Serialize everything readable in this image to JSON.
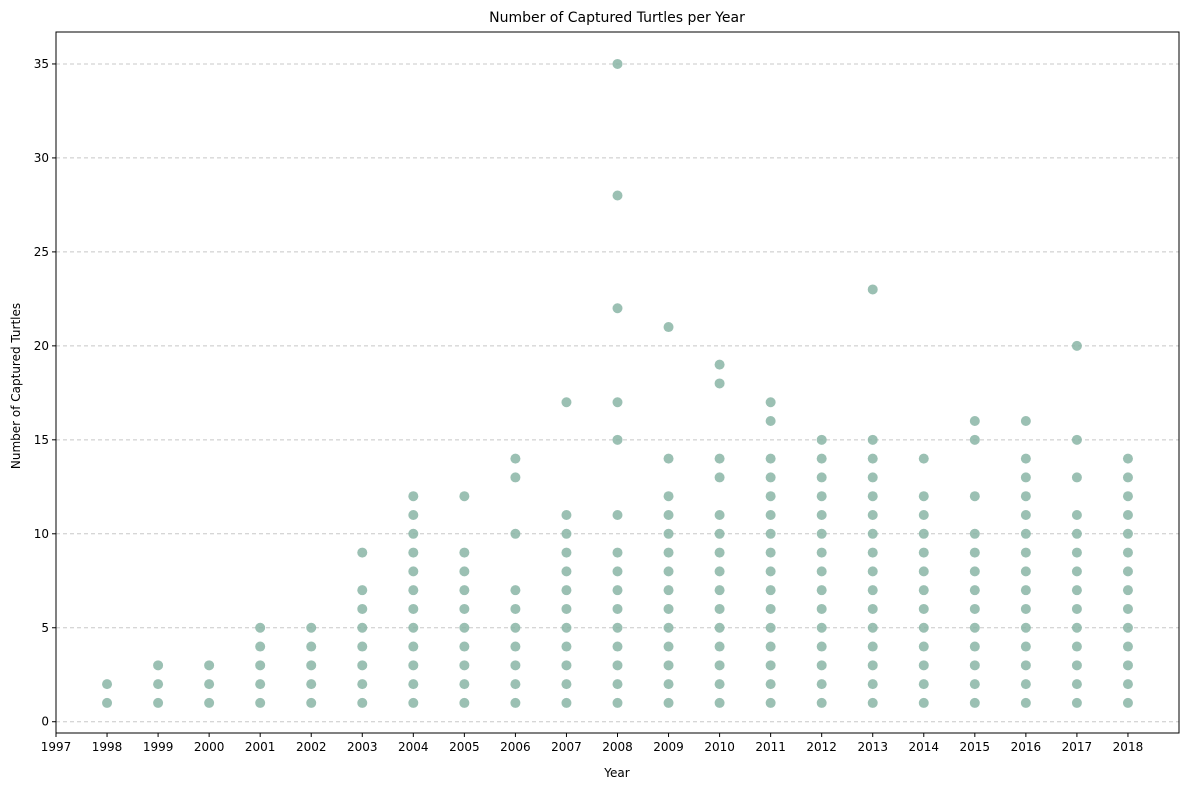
{
  "chart_data": {
    "type": "scatter",
    "title": "Number of Captured Turtles per Year",
    "xlabel": "Year",
    "ylabel": "Number of Captured Turtles",
    "xlim": [
      1997,
      2019
    ],
    "ylim": [
      -0.6,
      36.7
    ],
    "xticks": [
      1997,
      1998,
      1999,
      2000,
      2001,
      2002,
      2003,
      2004,
      2005,
      2006,
      2007,
      2008,
      2009,
      2010,
      2011,
      2012,
      2013,
      2014,
      2015,
      2016,
      2017,
      2018
    ],
    "yticks": [
      0,
      5,
      10,
      15,
      20,
      25,
      30,
      35
    ],
    "grid": "y-dashed",
    "marker_color": "#8ab5a6",
    "points": [
      [
        1998,
        1
      ],
      [
        1998,
        2
      ],
      [
        1999,
        1
      ],
      [
        1999,
        2
      ],
      [
        1999,
        3
      ],
      [
        2000,
        1
      ],
      [
        2000,
        2
      ],
      [
        2000,
        3
      ],
      [
        2001,
        1
      ],
      [
        2001,
        2
      ],
      [
        2001,
        3
      ],
      [
        2001,
        4
      ],
      [
        2001,
        5
      ],
      [
        2002,
        1
      ],
      [
        2002,
        2
      ],
      [
        2002,
        3
      ],
      [
        2002,
        4
      ],
      [
        2002,
        5
      ],
      [
        2003,
        1
      ],
      [
        2003,
        2
      ],
      [
        2003,
        3
      ],
      [
        2003,
        4
      ],
      [
        2003,
        5
      ],
      [
        2003,
        6
      ],
      [
        2003,
        7
      ],
      [
        2003,
        9
      ],
      [
        2004,
        1
      ],
      [
        2004,
        2
      ],
      [
        2004,
        3
      ],
      [
        2004,
        4
      ],
      [
        2004,
        5
      ],
      [
        2004,
        6
      ],
      [
        2004,
        7
      ],
      [
        2004,
        8
      ],
      [
        2004,
        9
      ],
      [
        2004,
        10
      ],
      [
        2004,
        11
      ],
      [
        2004,
        12
      ],
      [
        2005,
        1
      ],
      [
        2005,
        2
      ],
      [
        2005,
        3
      ],
      [
        2005,
        4
      ],
      [
        2005,
        5
      ],
      [
        2005,
        6
      ],
      [
        2005,
        7
      ],
      [
        2005,
        8
      ],
      [
        2005,
        9
      ],
      [
        2005,
        12
      ],
      [
        2006,
        1
      ],
      [
        2006,
        2
      ],
      [
        2006,
        3
      ],
      [
        2006,
        4
      ],
      [
        2006,
        5
      ],
      [
        2006,
        6
      ],
      [
        2006,
        7
      ],
      [
        2006,
        10
      ],
      [
        2006,
        13
      ],
      [
        2006,
        14
      ],
      [
        2007,
        1
      ],
      [
        2007,
        2
      ],
      [
        2007,
        3
      ],
      [
        2007,
        4
      ],
      [
        2007,
        5
      ],
      [
        2007,
        6
      ],
      [
        2007,
        7
      ],
      [
        2007,
        8
      ],
      [
        2007,
        9
      ],
      [
        2007,
        10
      ],
      [
        2007,
        11
      ],
      [
        2007,
        17
      ],
      [
        2008,
        1
      ],
      [
        2008,
        2
      ],
      [
        2008,
        3
      ],
      [
        2008,
        4
      ],
      [
        2008,
        5
      ],
      [
        2008,
        6
      ],
      [
        2008,
        7
      ],
      [
        2008,
        8
      ],
      [
        2008,
        9
      ],
      [
        2008,
        11
      ],
      [
        2008,
        15
      ],
      [
        2008,
        17
      ],
      [
        2008,
        22
      ],
      [
        2008,
        28
      ],
      [
        2008,
        35
      ],
      [
        2009,
        1
      ],
      [
        2009,
        2
      ],
      [
        2009,
        3
      ],
      [
        2009,
        4
      ],
      [
        2009,
        5
      ],
      [
        2009,
        6
      ],
      [
        2009,
        7
      ],
      [
        2009,
        8
      ],
      [
        2009,
        9
      ],
      [
        2009,
        10
      ],
      [
        2009,
        11
      ],
      [
        2009,
        12
      ],
      [
        2009,
        14
      ],
      [
        2009,
        21
      ],
      [
        2010,
        1
      ],
      [
        2010,
        2
      ],
      [
        2010,
        3
      ],
      [
        2010,
        4
      ],
      [
        2010,
        5
      ],
      [
        2010,
        6
      ],
      [
        2010,
        7
      ],
      [
        2010,
        8
      ],
      [
        2010,
        9
      ],
      [
        2010,
        10
      ],
      [
        2010,
        11
      ],
      [
        2010,
        13
      ],
      [
        2010,
        14
      ],
      [
        2010,
        18
      ],
      [
        2010,
        19
      ],
      [
        2011,
        1
      ],
      [
        2011,
        2
      ],
      [
        2011,
        3
      ],
      [
        2011,
        4
      ],
      [
        2011,
        5
      ],
      [
        2011,
        6
      ],
      [
        2011,
        7
      ],
      [
        2011,
        8
      ],
      [
        2011,
        9
      ],
      [
        2011,
        10
      ],
      [
        2011,
        11
      ],
      [
        2011,
        12
      ],
      [
        2011,
        13
      ],
      [
        2011,
        14
      ],
      [
        2011,
        16
      ],
      [
        2011,
        17
      ],
      [
        2012,
        1
      ],
      [
        2012,
        2
      ],
      [
        2012,
        3
      ],
      [
        2012,
        4
      ],
      [
        2012,
        5
      ],
      [
        2012,
        6
      ],
      [
        2012,
        7
      ],
      [
        2012,
        8
      ],
      [
        2012,
        9
      ],
      [
        2012,
        10
      ],
      [
        2012,
        11
      ],
      [
        2012,
        12
      ],
      [
        2012,
        13
      ],
      [
        2012,
        14
      ],
      [
        2012,
        15
      ],
      [
        2013,
        1
      ],
      [
        2013,
        2
      ],
      [
        2013,
        3
      ],
      [
        2013,
        4
      ],
      [
        2013,
        5
      ],
      [
        2013,
        6
      ],
      [
        2013,
        7
      ],
      [
        2013,
        8
      ],
      [
        2013,
        9
      ],
      [
        2013,
        10
      ],
      [
        2013,
        11
      ],
      [
        2013,
        12
      ],
      [
        2013,
        13
      ],
      [
        2013,
        14
      ],
      [
        2013,
        15
      ],
      [
        2013,
        23
      ],
      [
        2014,
        1
      ],
      [
        2014,
        2
      ],
      [
        2014,
        3
      ],
      [
        2014,
        4
      ],
      [
        2014,
        5
      ],
      [
        2014,
        6
      ],
      [
        2014,
        7
      ],
      [
        2014,
        8
      ],
      [
        2014,
        9
      ],
      [
        2014,
        10
      ],
      [
        2014,
        11
      ],
      [
        2014,
        12
      ],
      [
        2014,
        14
      ],
      [
        2015,
        1
      ],
      [
        2015,
        2
      ],
      [
        2015,
        3
      ],
      [
        2015,
        4
      ],
      [
        2015,
        5
      ],
      [
        2015,
        6
      ],
      [
        2015,
        7
      ],
      [
        2015,
        8
      ],
      [
        2015,
        9
      ],
      [
        2015,
        10
      ],
      [
        2015,
        12
      ],
      [
        2015,
        15
      ],
      [
        2015,
        16
      ],
      [
        2016,
        1
      ],
      [
        2016,
        2
      ],
      [
        2016,
        3
      ],
      [
        2016,
        4
      ],
      [
        2016,
        5
      ],
      [
        2016,
        6
      ],
      [
        2016,
        7
      ],
      [
        2016,
        8
      ],
      [
        2016,
        9
      ],
      [
        2016,
        10
      ],
      [
        2016,
        11
      ],
      [
        2016,
        12
      ],
      [
        2016,
        13
      ],
      [
        2016,
        14
      ],
      [
        2016,
        16
      ],
      [
        2017,
        1
      ],
      [
        2017,
        2
      ],
      [
        2017,
        3
      ],
      [
        2017,
        4
      ],
      [
        2017,
        5
      ],
      [
        2017,
        6
      ],
      [
        2017,
        7
      ],
      [
        2017,
        8
      ],
      [
        2017,
        9
      ],
      [
        2017,
        10
      ],
      [
        2017,
        11
      ],
      [
        2017,
        13
      ],
      [
        2017,
        15
      ],
      [
        2017,
        20
      ],
      [
        2018,
        1
      ],
      [
        2018,
        2
      ],
      [
        2018,
        3
      ],
      [
        2018,
        4
      ],
      [
        2018,
        5
      ],
      [
        2018,
        6
      ],
      [
        2018,
        7
      ],
      [
        2018,
        8
      ],
      [
        2018,
        9
      ],
      [
        2018,
        10
      ],
      [
        2018,
        11
      ],
      [
        2018,
        12
      ],
      [
        2018,
        13
      ],
      [
        2018,
        14
      ]
    ]
  }
}
